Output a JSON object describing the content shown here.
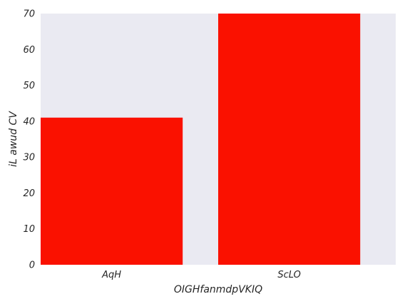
{
  "chart_data": {
    "type": "bar",
    "categories": [
      "AqH",
      "ScLO"
    ],
    "values": [
      41,
      70
    ],
    "xlabel": "OIGHfanmdpVKIQ",
    "ylabel": "iL awud CV",
    "ylim": [
      0,
      70
    ],
    "yticks": [
      0,
      10,
      20,
      30,
      40,
      50,
      60,
      70
    ],
    "grid": false,
    "colors": {
      "bar": "#fa1100",
      "plot_background": "#eaeaf2",
      "text": "#262626"
    }
  }
}
